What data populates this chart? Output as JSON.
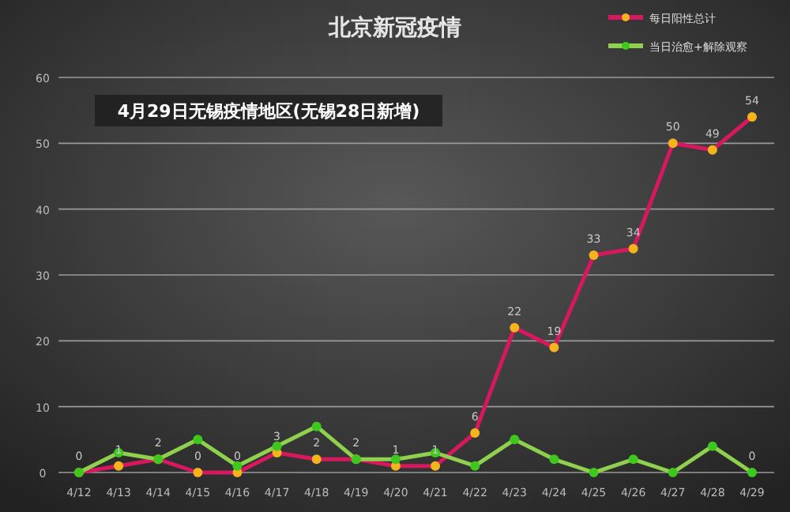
{
  "chart_data": {
    "type": "line",
    "title": "北京新冠疫情",
    "annotations": [
      "4月29日无锡疫情地区(无锡28日新增)"
    ],
    "categories": [
      "4/12",
      "4/13",
      "4/14",
      "4/15",
      "4/16",
      "4/17",
      "4/18",
      "4/19",
      "4/20",
      "4/21",
      "4/22",
      "4/23",
      "4/24",
      "4/25",
      "4/26",
      "4/27",
      "4/28",
      "4/29"
    ],
    "series": [
      {
        "name": "每日阳性总计",
        "color": "#d6185f",
        "colors": [
          "#f5b41e",
          "#f5b41e",
          "#f5b41e",
          "#f5b41e",
          "#f5b41e",
          "#f5b41e",
          "#f5b41e",
          "#f5b41e",
          "#f5b41e",
          "#f5b41e",
          "#f5b41e",
          "#f5b41e",
          "#f5b41e",
          "#f5b41e",
          "#f5b41e",
          "#f5b41e",
          "#f5b41e",
          "#f5b41e"
        ],
        "values": [
          0,
          1,
          2,
          0,
          0,
          3,
          2,
          2,
          1,
          1,
          6,
          22,
          19,
          33,
          34,
          50,
          49,
          54
        ],
        "value_labels": [
          "0",
          "1",
          "2",
          "0",
          "0",
          "3",
          "2",
          "2",
          "1",
          "1",
          "6",
          "22",
          "19",
          "33",
          "34",
          "50",
          "49",
          "54"
        ]
      },
      {
        "name": "当日治愈+解除观察",
        "color": "#8fd14f",
        "colors": [
          "#3ec81e",
          "#3ec81e",
          "#3ec81e",
          "#3ec81e",
          "#3ec81e",
          "#3ec81e",
          "#3ec81e",
          "#3ec81e",
          "#3ec81e",
          "#3ec81e",
          "#3ec81e",
          "#3ec81e",
          "#3ec81e",
          "#3ec81e",
          "#3ec81e",
          "#3ec81e",
          "#3ec81e",
          "#3ec81e"
        ],
        "values": [
          0,
          3,
          2,
          5,
          1,
          4,
          7,
          2,
          2,
          3,
          1,
          5,
          2,
          0,
          2,
          0,
          4,
          0
        ],
        "value_labels": [
          null,
          null,
          null,
          null,
          null,
          null,
          null,
          null,
          null,
          null,
          null,
          null,
          null,
          null,
          null,
          null,
          null,
          "0"
        ]
      }
    ],
    "ylim": [
      0,
      60
    ],
    "yticks": [
      0,
      10,
      20,
      30,
      40,
      50,
      60
    ],
    "grid": "y",
    "legend": "top right",
    "marker": "circle",
    "line_style": "solid"
  }
}
